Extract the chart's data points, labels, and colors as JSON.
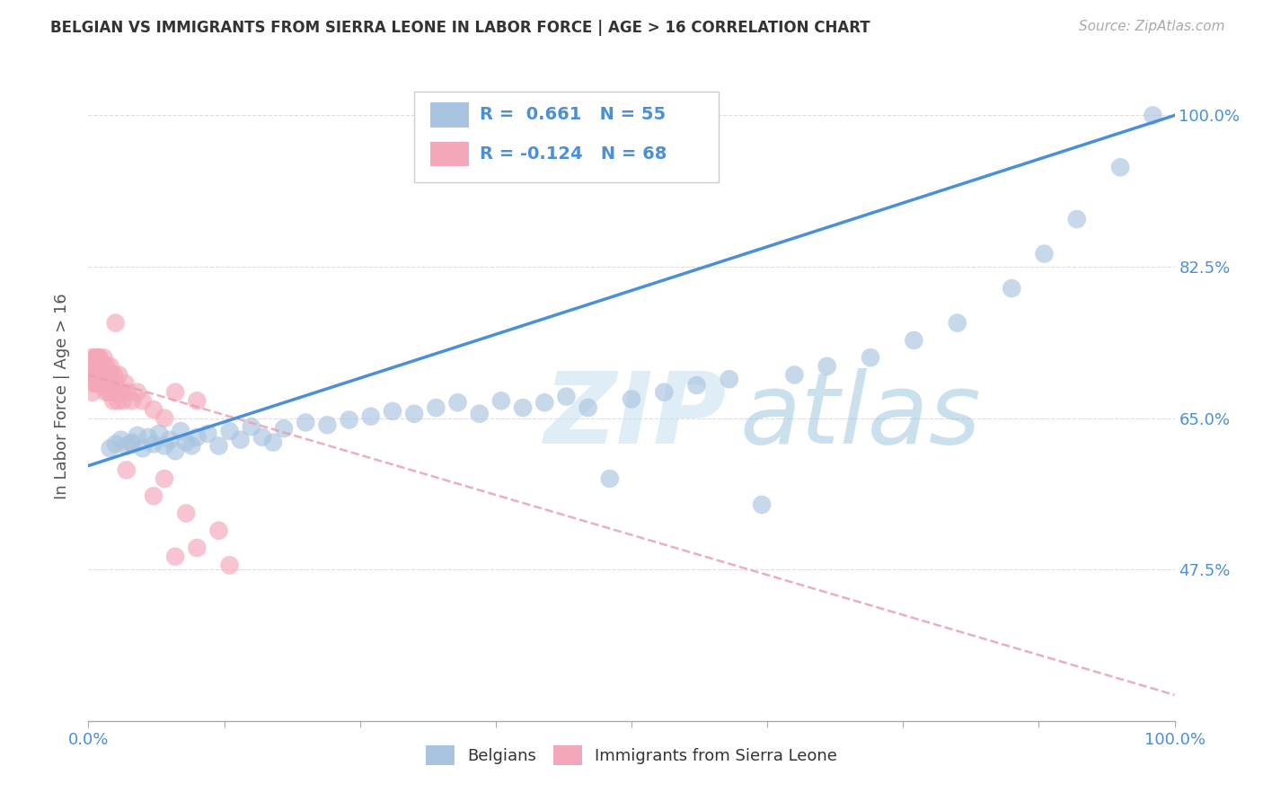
{
  "title": "BELGIAN VS IMMIGRANTS FROM SIERRA LEONE IN LABOR FORCE | AGE > 16 CORRELATION CHART",
  "source": "Source: ZipAtlas.com",
  "ylabel": "In Labor Force | Age > 16",
  "r_belgian": 0.661,
  "n_belgian": 55,
  "r_sierraLeone": -0.124,
  "n_sierraLeone": 68,
  "xlim": [
    0.0,
    1.0
  ],
  "ylim": [
    0.3,
    1.05
  ],
  "xtick_positions": [
    0.0,
    1.0
  ],
  "xtick_labels": [
    "0.0%",
    "100.0%"
  ],
  "ytick_positions": [
    0.475,
    0.65,
    0.825,
    1.0
  ],
  "ytick_labels": [
    "47.5%",
    "65.0%",
    "82.5%",
    "100.0%"
  ],
  "blue_color": "#a8c4e0",
  "pink_color": "#f4a7b9",
  "blue_line_color": "#4a90d9",
  "pink_line_color": "#e8a0b0",
  "text_color": "#4a90d9",
  "axis_color": "#999999",
  "grid_color": "#dddddd",
  "background_color": "#ffffff",
  "belgians_x": [
    0.02,
    0.025,
    0.03,
    0.035,
    0.04,
    0.045,
    0.05,
    0.055,
    0.06,
    0.065,
    0.07,
    0.075,
    0.08,
    0.085,
    0.09,
    0.095,
    0.1,
    0.11,
    0.12,
    0.13,
    0.14,
    0.15,
    0.16,
    0.17,
    0.18,
    0.2,
    0.22,
    0.24,
    0.26,
    0.28,
    0.3,
    0.32,
    0.34,
    0.36,
    0.38,
    0.4,
    0.42,
    0.44,
    0.46,
    0.48,
    0.5,
    0.53,
    0.56,
    0.59,
    0.62,
    0.65,
    0.68,
    0.72,
    0.76,
    0.8,
    0.85,
    0.88,
    0.91,
    0.95,
    0.98
  ],
  "belgians_y": [
    0.615,
    0.62,
    0.625,
    0.618,
    0.622,
    0.63,
    0.615,
    0.628,
    0.62,
    0.632,
    0.618,
    0.625,
    0.612,
    0.635,
    0.622,
    0.618,
    0.628,
    0.632,
    0.618,
    0.635,
    0.625,
    0.64,
    0.628,
    0.622,
    0.638,
    0.645,
    0.642,
    0.648,
    0.652,
    0.658,
    0.655,
    0.662,
    0.668,
    0.655,
    0.67,
    0.662,
    0.668,
    0.675,
    0.662,
    0.58,
    0.672,
    0.68,
    0.688,
    0.695,
    0.55,
    0.7,
    0.71,
    0.72,
    0.74,
    0.76,
    0.8,
    0.84,
    0.88,
    0.94,
    1.0
  ],
  "sierra_x": [
    0.002,
    0.003,
    0.004,
    0.005,
    0.005,
    0.006,
    0.006,
    0.007,
    0.007,
    0.007,
    0.008,
    0.008,
    0.008,
    0.009,
    0.009,
    0.01,
    0.01,
    0.01,
    0.01,
    0.011,
    0.011,
    0.012,
    0.012,
    0.013,
    0.013,
    0.014,
    0.014,
    0.015,
    0.015,
    0.016,
    0.016,
    0.017,
    0.017,
    0.018,
    0.018,
    0.019,
    0.02,
    0.02,
    0.021,
    0.022,
    0.022,
    0.023,
    0.024,
    0.025,
    0.026,
    0.027,
    0.028,
    0.03,
    0.032,
    0.034,
    0.036,
    0.04,
    0.045,
    0.05,
    0.06,
    0.07,
    0.08,
    0.09,
    0.1,
    0.12,
    0.08,
    0.1,
    0.07,
    0.06,
    0.13,
    0.04,
    0.035,
    0.025
  ],
  "sierra_y": [
    0.7,
    0.72,
    0.68,
    0.71,
    0.69,
    0.72,
    0.7,
    0.71,
    0.69,
    0.72,
    0.7,
    0.71,
    0.69,
    0.7,
    0.72,
    0.71,
    0.69,
    0.7,
    0.72,
    0.7,
    0.69,
    0.7,
    0.71,
    0.69,
    0.7,
    0.72,
    0.7,
    0.69,
    0.71,
    0.7,
    0.68,
    0.7,
    0.71,
    0.69,
    0.7,
    0.68,
    0.7,
    0.71,
    0.69,
    0.7,
    0.68,
    0.67,
    0.7,
    0.69,
    0.68,
    0.67,
    0.7,
    0.68,
    0.67,
    0.69,
    0.68,
    0.67,
    0.68,
    0.67,
    0.66,
    0.65,
    0.68,
    0.54,
    0.67,
    0.52,
    0.49,
    0.5,
    0.58,
    0.56,
    0.48,
    0.62,
    0.59,
    0.76
  ],
  "blue_line_x0": 0.0,
  "blue_line_y0": 0.595,
  "blue_line_x1": 1.0,
  "blue_line_y1": 1.0,
  "pink_line_x0": 0.0,
  "pink_line_y0": 0.7,
  "pink_line_x1": 1.0,
  "pink_line_y1": 0.33
}
